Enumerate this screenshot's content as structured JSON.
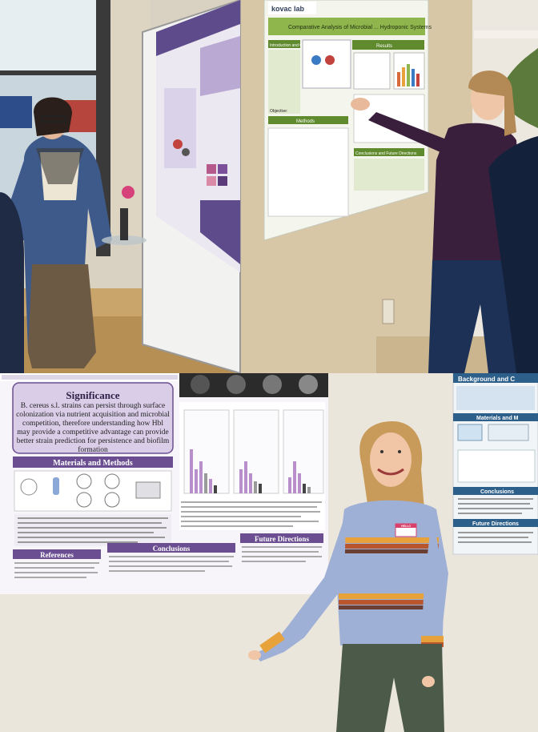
{
  "top_photo": {
    "poster": {
      "logo": "kovac lab",
      "title": "Comparative Analysis of Microbial ... Hydroponic Systems",
      "sections": {
        "intro": "Introduction and Objective",
        "methods": "Methods",
        "results": "Results",
        "conclusions": "Conclusions and Future Directions"
      },
      "objective_label": "Objective:"
    }
  },
  "bottom_photo": {
    "poster": {
      "significance_heading": "Significance",
      "significance_text": "B. cereus s.l. strains can persist through surface colonization via nutrient acquisition and microbial competition, therefore understanding how Hbl may provide a competitive advantage can provide better strain prediction for persistence and biofilm formation",
      "materials_heading": "Materials and Methods",
      "references_heading": "References",
      "conclusions_heading": "Conclusions",
      "future_heading": "Future Directions"
    },
    "side_poster": {
      "background_heading": "Background and C",
      "materials_heading": "Materials and M",
      "conclusions_heading": "Conclusions",
      "future_heading": "Future Directions"
    },
    "name_tag": "HELLO"
  }
}
